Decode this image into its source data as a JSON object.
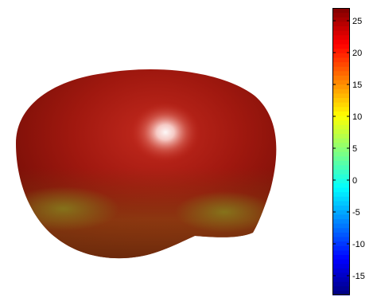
{
  "chart_data": {
    "type": "surface",
    "title": "",
    "colormap": "jet",
    "surface_color": "#a31a0c",
    "colorbar": {
      "placement": "right",
      "clim": [
        -18,
        27
      ],
      "ticks": [
        25,
        20,
        15,
        10,
        5,
        0,
        -5,
        -10,
        -15
      ],
      "tick_labels": [
        "25",
        "20",
        "15",
        "10",
        "5",
        "0",
        "-5",
        "-10",
        "-15"
      ]
    }
  }
}
